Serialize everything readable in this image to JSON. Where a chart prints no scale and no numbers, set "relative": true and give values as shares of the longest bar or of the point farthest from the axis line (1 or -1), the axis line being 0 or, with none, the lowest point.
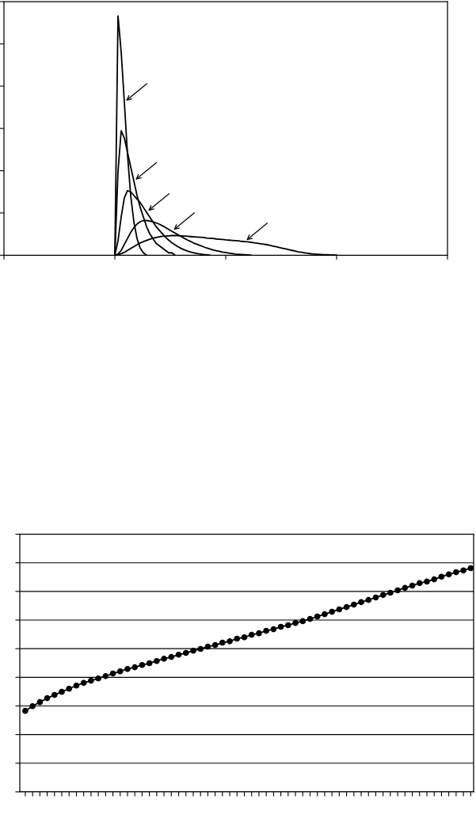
{
  "chart_data": [
    {
      "type": "line",
      "relative": true,
      "grid": false,
      "marker": "none",
      "line_style": "solid",
      "categories": [
        null,
        null,
        null,
        null,
        null,
        null,
        null,
        null,
        null,
        null,
        null,
        null,
        null,
        null,
        null,
        null,
        null,
        null,
        null,
        null,
        null,
        null,
        null,
        null,
        null,
        null,
        null,
        null,
        null,
        null,
        null,
        null,
        null,
        null,
        null,
        null,
        null,
        null,
        null,
        null,
        null,
        null,
        null,
        null,
        null,
        null,
        null,
        null,
        null,
        null,
        null,
        null,
        null,
        null,
        null,
        null,
        null,
        null,
        null,
        null,
        null,
        null,
        null,
        null,
        null,
        null,
        null,
        null,
        null,
        null,
        null,
        null,
        null,
        null,
        null,
        null,
        null,
        null,
        null,
        null,
        null,
        null,
        null,
        null,
        null,
        null,
        null,
        null,
        null,
        null,
        null,
        null,
        null,
        null,
        null,
        null,
        null,
        null,
        null,
        null,
        null,
        null,
        null,
        null,
        null,
        null,
        null,
        null,
        null,
        null,
        null,
        null,
        null,
        null,
        null,
        null,
        null,
        null,
        null,
        null,
        null,
        null,
        null,
        null,
        null,
        null,
        null,
        null,
        null,
        null,
        null,
        null,
        null,
        null,
        null,
        null,
        null,
        null,
        null,
        null,
        null
      ],
      "series": [
        {
          "color": "#000000",
          "values": [
            null,
            null,
            null,
            null,
            null,
            null,
            null,
            null,
            null,
            null,
            null,
            null,
            null,
            null,
            null,
            null,
            null,
            null,
            null,
            null,
            null,
            null,
            null,
            null,
            null,
            null,
            null,
            null,
            null,
            null,
            null,
            null,
            null,
            null,
            null,
            0,
            1,
            0.85,
            0.64,
            0.42,
            0.25,
            0.14,
            0.07,
            0.03,
            0.01,
            0,
            null,
            null,
            null,
            null,
            null,
            null,
            null,
            null,
            null,
            null,
            null,
            null,
            null,
            null,
            null,
            null,
            null,
            null,
            null,
            null,
            null,
            null,
            null,
            null,
            null,
            null,
            null,
            null,
            null,
            null,
            null,
            null,
            null,
            null,
            null,
            null,
            null,
            null,
            null,
            null,
            null,
            null,
            null,
            null,
            null,
            null,
            null,
            null,
            null,
            null,
            null,
            null,
            null,
            null,
            null,
            null,
            null,
            null,
            null,
            null,
            null,
            null,
            null,
            null,
            null,
            null,
            null,
            null,
            null,
            null,
            null,
            null,
            null,
            null,
            null,
            null,
            null,
            null,
            null,
            null,
            null,
            null,
            null,
            null,
            null,
            null,
            null,
            null,
            null,
            null,
            null,
            null,
            null,
            null,
            null
          ]
        },
        {
          "color": "#000000",
          "values": [
            null,
            null,
            null,
            null,
            null,
            null,
            null,
            null,
            null,
            null,
            null,
            null,
            null,
            null,
            null,
            null,
            null,
            null,
            null,
            null,
            null,
            null,
            null,
            null,
            null,
            null,
            null,
            null,
            null,
            null,
            null,
            null,
            null,
            null,
            null,
            0,
            0.35,
            0.52,
            0.49,
            0.43,
            0.37,
            0.31,
            0.25,
            0.2,
            0.16,
            0.12,
            0.09,
            0.07,
            0.05,
            0.04,
            0.03,
            0.02,
            0.01,
            0.01,
            0,
            null,
            null,
            null,
            null,
            null,
            null,
            null,
            null,
            null,
            null,
            null,
            null,
            null,
            null,
            null,
            null,
            null,
            null,
            null,
            null,
            null,
            null,
            null,
            null,
            null,
            null,
            null,
            null,
            null,
            null,
            null,
            null,
            null,
            null,
            null,
            null,
            null,
            null,
            null,
            null,
            null,
            null,
            null,
            null,
            null,
            null,
            null,
            null,
            null,
            null,
            null,
            null,
            null,
            null,
            null,
            null,
            null,
            null,
            null,
            null,
            null,
            null,
            null,
            null,
            null,
            null,
            null,
            null,
            null,
            null,
            null,
            null,
            null,
            null,
            null,
            null,
            null,
            null,
            null,
            null,
            null,
            null,
            null,
            null,
            null,
            null
          ]
        },
        {
          "color": "#000000",
          "values": [
            null,
            null,
            null,
            null,
            null,
            null,
            null,
            null,
            null,
            null,
            null,
            null,
            null,
            null,
            null,
            null,
            null,
            null,
            null,
            null,
            null,
            null,
            null,
            null,
            null,
            null,
            null,
            null,
            null,
            null,
            null,
            null,
            null,
            null,
            null,
            0,
            0.06,
            0.16,
            0.24,
            0.27,
            0.265,
            0.25,
            0.235,
            0.22,
            0.2,
            0.18,
            0.16,
            0.14,
            0.12,
            0.105,
            0.09,
            0.075,
            0.063,
            0.052,
            0.043,
            0.035,
            0.028,
            0.022,
            0.017,
            0.013,
            0.01,
            0.007,
            0.005,
            0.003,
            0.002,
            0,
            null,
            null,
            null,
            null,
            null,
            null,
            null,
            null,
            null,
            null,
            null,
            null,
            null,
            null,
            null,
            null,
            null,
            null,
            null,
            null,
            null,
            null,
            null,
            null,
            null,
            null,
            null,
            null,
            null,
            null,
            null,
            null,
            null,
            null,
            null,
            null,
            null,
            null,
            null,
            null,
            null,
            null,
            null,
            null,
            null,
            null,
            null,
            null,
            null,
            null,
            null,
            null,
            null,
            null,
            null,
            null,
            null,
            null,
            null,
            null,
            null,
            null,
            null,
            null,
            null,
            null,
            null,
            null,
            null,
            null,
            null,
            null,
            null,
            null,
            null
          ]
        },
        {
          "color": "#000000",
          "values": [
            null,
            null,
            null,
            null,
            null,
            null,
            null,
            null,
            null,
            null,
            null,
            null,
            null,
            null,
            null,
            null,
            null,
            null,
            null,
            null,
            null,
            null,
            null,
            null,
            null,
            null,
            null,
            null,
            null,
            null,
            null,
            null,
            null,
            null,
            null,
            0,
            0.005,
            0.02,
            0.045,
            0.07,
            0.095,
            0.115,
            0.13,
            0.14,
            0.145,
            0.145,
            0.143,
            0.14,
            0.135,
            0.13,
            0.123,
            0.116,
            0.108,
            0.1,
            0.093,
            0.085,
            0.078,
            0.07,
            0.063,
            0.057,
            0.05,
            0.045,
            0.04,
            0.035,
            0.03,
            0.026,
            0.022,
            0.019,
            0.016,
            0.013,
            0.011,
            0.009,
            0.007,
            0.005,
            0.004,
            0.003,
            0.002,
            0.001,
            0,
            null,
            null,
            null,
            null,
            null,
            null,
            null,
            null,
            null,
            null,
            null,
            null,
            null,
            null,
            null,
            null,
            null,
            null,
            null,
            null,
            null,
            null,
            null,
            null,
            null,
            null,
            null,
            null,
            null,
            null,
            null,
            null,
            null,
            null,
            null,
            null,
            null,
            null,
            null,
            null,
            null,
            null,
            null,
            null,
            null,
            null,
            null,
            null,
            null,
            null,
            null,
            null,
            null,
            null,
            null,
            null,
            null,
            null,
            null,
            null,
            null,
            null
          ]
        },
        {
          "color": "#000000",
          "values": [
            null,
            null,
            null,
            null,
            null,
            null,
            null,
            null,
            null,
            null,
            null,
            null,
            null,
            null,
            null,
            null,
            null,
            null,
            null,
            null,
            null,
            null,
            null,
            null,
            null,
            null,
            null,
            null,
            null,
            null,
            null,
            null,
            null,
            null,
            null,
            0,
            0.002,
            0.006,
            0.012,
            0.02,
            0.028,
            0.036,
            0.044,
            0.051,
            0.057,
            0.062,
            0.067,
            0.071,
            0.074,
            0.077,
            0.079,
            0.08,
            0.081,
            0.082,
            0.082,
            0.082,
            0.081,
            0.08,
            0.079,
            0.078,
            0.077,
            0.076,
            0.075,
            0.074,
            0.072,
            0.071,
            0.07,
            0.068,
            0.067,
            0.066,
            0.064,
            0.063,
            0.062,
            0.061,
            0.06,
            0.058,
            0.057,
            0.056,
            0.054,
            0.052,
            0.05,
            0.048,
            0.046,
            0.044,
            0.041,
            0.038,
            0.035,
            0.032,
            0.029,
            0.026,
            0.023,
            0.02,
            0.017,
            0.014,
            0.012,
            0.01,
            0.008,
            0.006,
            0.005,
            0.004,
            0.003,
            0.002,
            0.002,
            0.001,
            0.001,
            0,
            null,
            null,
            null,
            null,
            null,
            null,
            null,
            null,
            null,
            null,
            null,
            null,
            null,
            null,
            null,
            null,
            null,
            null,
            null,
            null,
            null,
            null,
            null,
            null,
            null,
            null,
            null,
            null,
            null,
            null,
            null,
            null,
            null,
            null,
            null
          ]
        }
      ]
    },
    {
      "type": "line",
      "relative": true,
      "grid": "y",
      "marker": "circle",
      "line_style": "solid",
      "categories": [
        null,
        null,
        null,
        null,
        null,
        null,
        null,
        null,
        null,
        null,
        null,
        null,
        null,
        null,
        null,
        null,
        null,
        null,
        null,
        null,
        null,
        null,
        null,
        null,
        null,
        null,
        null,
        null,
        null,
        null,
        null,
        null,
        null,
        null,
        null,
        null,
        null,
        null,
        null,
        null,
        null,
        null,
        null,
        null,
        null,
        null,
        null,
        null,
        null,
        null,
        null,
        null,
        null,
        null,
        null,
        null,
        null,
        null,
        null,
        null,
        null,
        null
      ],
      "series": [
        {
          "color": "#000000",
          "values": [
            0.362,
            0.383,
            0.401,
            0.419,
            0.433,
            0.447,
            0.461,
            0.475,
            0.487,
            0.497,
            0.507,
            0.517,
            0.529,
            0.539,
            0.549,
            0.557,
            0.567,
            0.575,
            0.585,
            0.595,
            0.603,
            0.613,
            0.621,
            0.631,
            0.639,
            0.649,
            0.656,
            0.667,
            0.673,
            0.685,
            0.691,
            0.702,
            0.709,
            0.72,
            0.727,
            0.738,
            0.745,
            0.755,
            0.763,
            0.773,
            0.784,
            0.794,
            0.805,
            0.816,
            0.826,
            0.837,
            0.848,
            0.858,
            0.869,
            0.88,
            0.89,
            0.901,
            0.912,
            0.922,
            0.933,
            0.94,
            0.95,
            0.962,
            0.972,
            0.982,
            0.99,
            1
          ]
        }
      ]
    }
  ]
}
